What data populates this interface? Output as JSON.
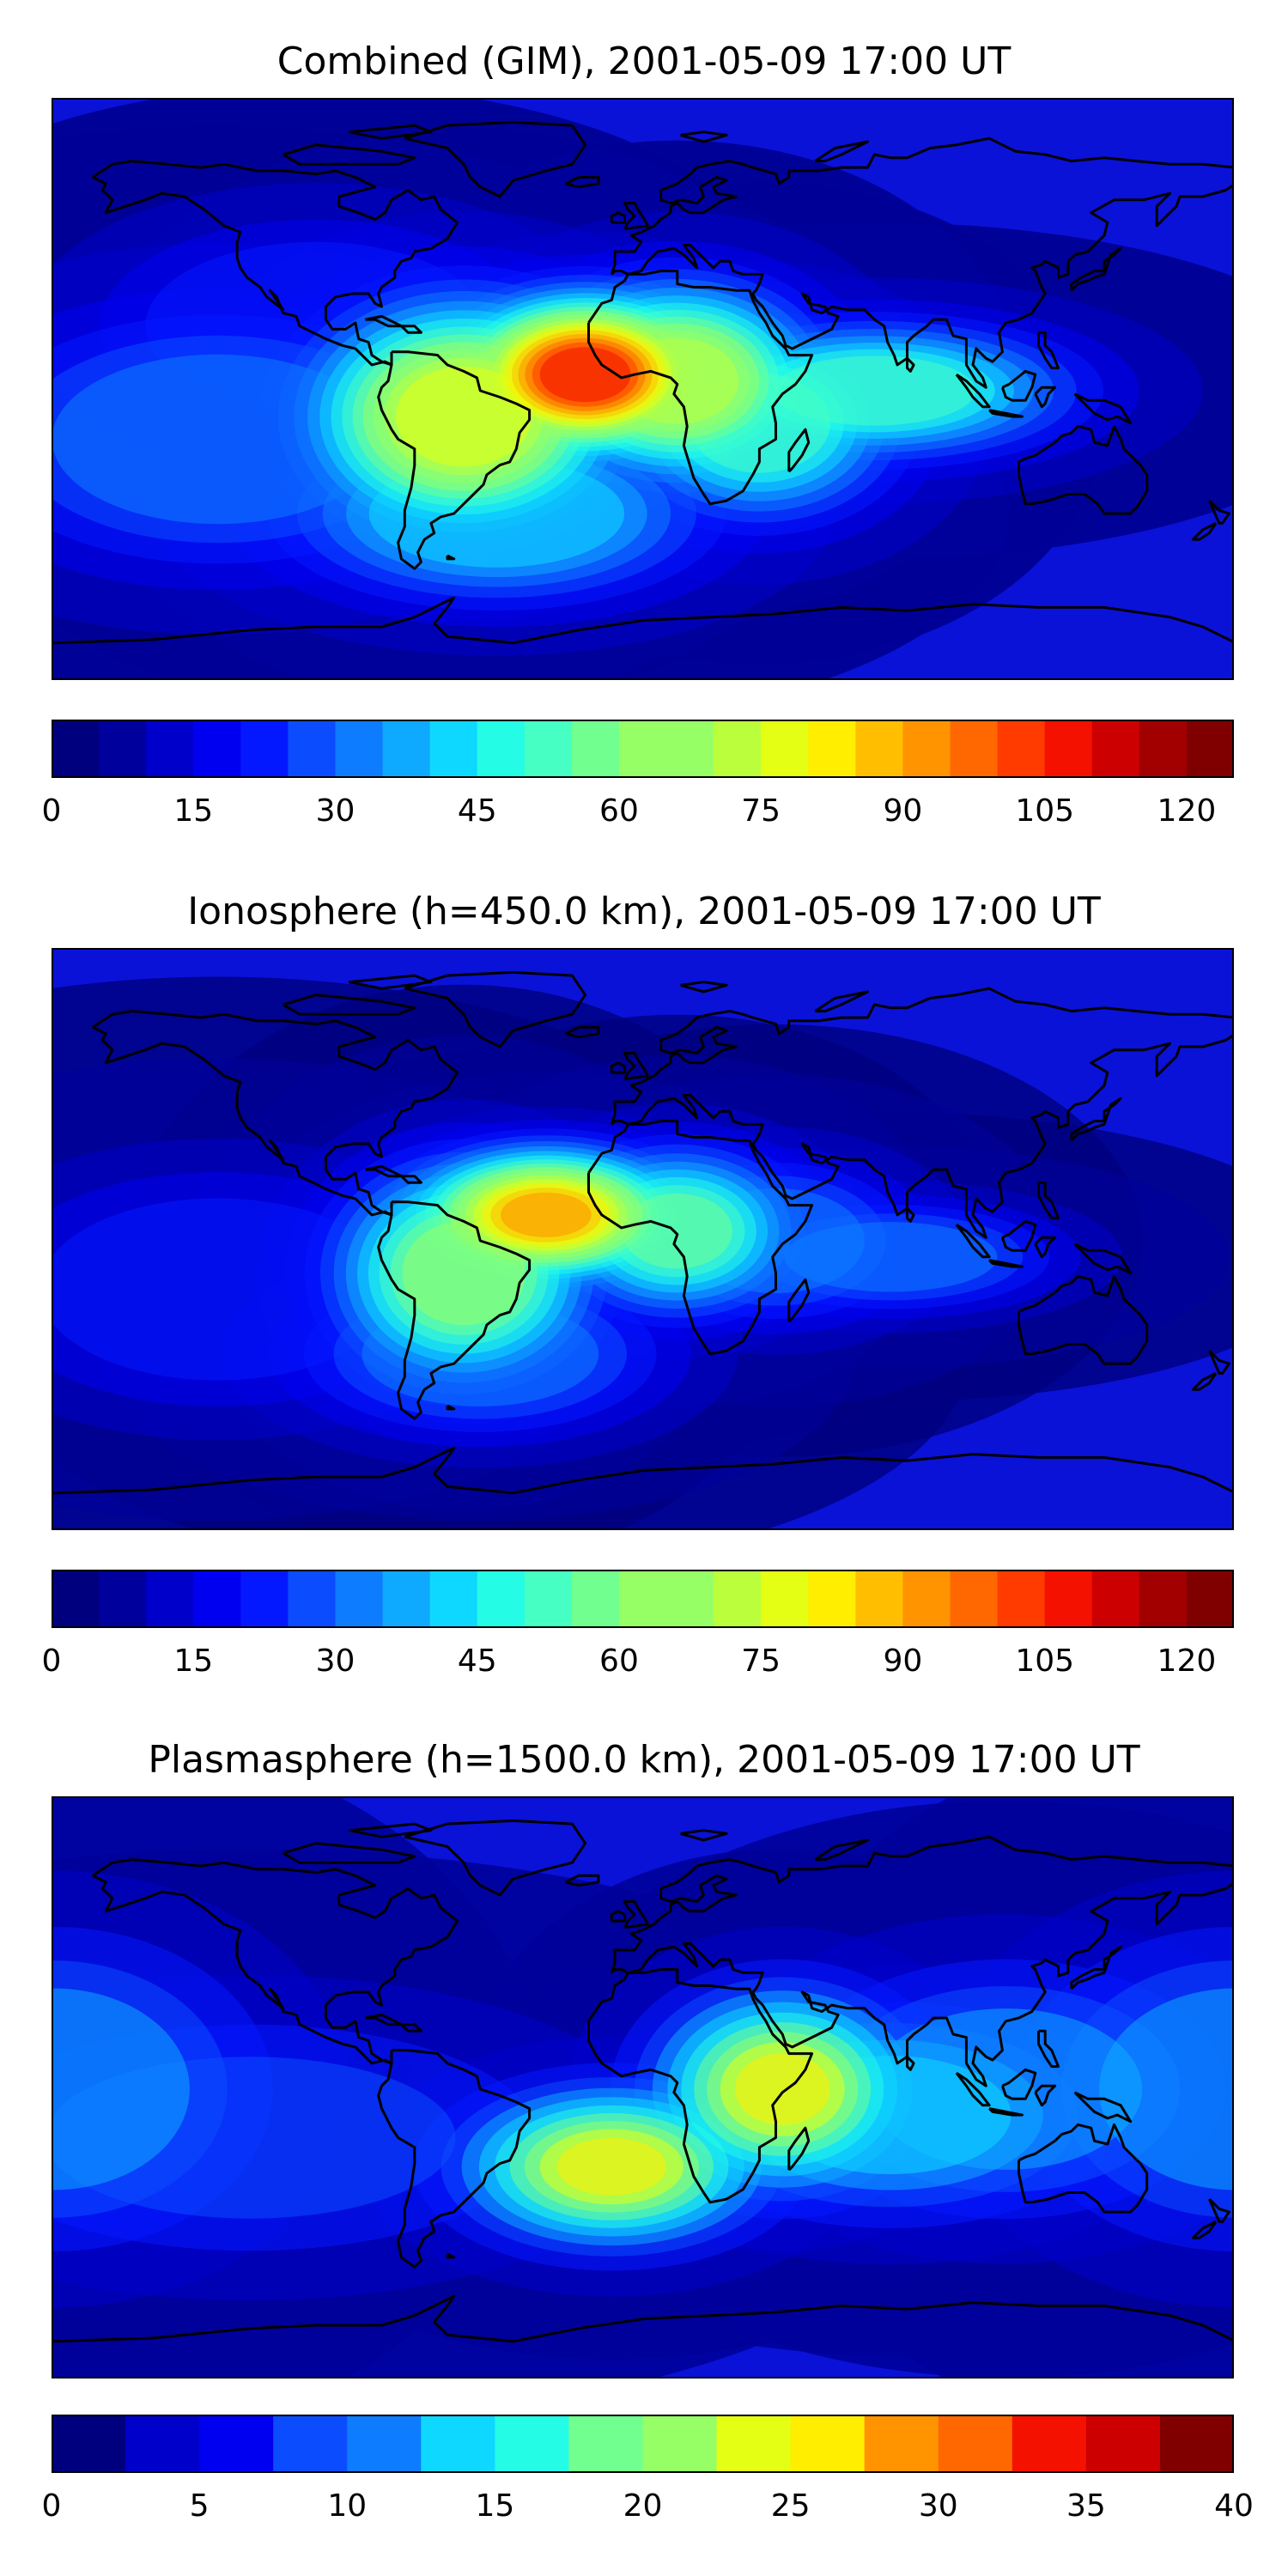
{
  "colors": [
    "#00007f",
    "#00009c",
    "#0000cb",
    "#0000f1",
    "#0418ff",
    "#0b4cff",
    "#0d7cff",
    "#0eaaff",
    "#0ed8ff",
    "#24fce6",
    "#45ffc3",
    "#71ff8f",
    "#96ff66",
    "#bbff3c",
    "#e4ff13",
    "#ffee00",
    "#ffbf00",
    "#ff9400",
    "#ff6800",
    "#ff3b00",
    "#f41100",
    "#cc0000",
    "#a20000",
    "#800000"
  ],
  "panels": [
    {
      "title": "Combined (GIM), 2001-05-09 17:00 UT",
      "chart_data": {
        "type": "heatmap",
        "title": "Combined (GIM), 2001-05-09 17:00 UT",
        "xlabel": "",
        "ylabel": "",
        "colorbar_range": [
          0,
          125
        ],
        "colorbar_levels": 26,
        "colorbar_ticks": [
          0,
          15,
          30,
          45,
          60,
          75,
          90,
          105,
          120
        ],
        "background_level": 20,
        "hotspots": [
          {
            "region": "South America (Amazon)",
            "value": 80
          },
          {
            "region": "Tropical Atlantic near Gulf of Guinea",
            "value": 105
          },
          {
            "region": "East Atlantic / West Africa",
            "value": 95
          },
          {
            "region": "Central Africa",
            "value": 75
          },
          {
            "region": "Equatorial Indian Ocean",
            "value": 55
          },
          {
            "region": "South Atlantic",
            "value": 45
          }
        ]
      }
    },
    {
      "title": "Ionosphere  (h=450.0 km), 2001-05-09 17:00 UT",
      "chart_data": {
        "type": "heatmap",
        "title": "Ionosphere  (h=450.0 km), 2001-05-09 17:00 UT",
        "xlabel": "",
        "ylabel": "",
        "colorbar_range": [
          0,
          125
        ],
        "colorbar_levels": 26,
        "colorbar_ticks": [
          0,
          15,
          30,
          45,
          60,
          75,
          90,
          105,
          120
        ],
        "background_level": 15,
        "hotspots": [
          {
            "region": "Northern South America",
            "value": 85
          },
          {
            "region": "Tropical Atlantic",
            "value": 95
          },
          {
            "region": "South America (south)",
            "value": 65
          },
          {
            "region": "West Africa",
            "value": 60
          },
          {
            "region": "Equatorial Indian Ocean",
            "value": 40
          },
          {
            "region": "South Atlantic",
            "value": 35
          }
        ]
      }
    },
    {
      "title": "Plasmasphere (h=1500.0 km), 2001-05-09 17:00 UT",
      "chart_data": {
        "type": "heatmap",
        "title": "Plasmasphere (h=1500.0 km), 2001-05-09 17:00 UT",
        "xlabel": "",
        "ylabel": "",
        "colorbar_range": [
          0,
          40
        ],
        "colorbar_levels": 17,
        "colorbar_ticks": [
          0,
          5,
          10,
          15,
          20,
          25,
          30,
          35,
          40
        ],
        "background_level": 6,
        "hotspots": [
          {
            "region": "Southern Africa / South Atlantic",
            "value": 26
          },
          {
            "region": "East Africa / Arabian Sea",
            "value": 26
          },
          {
            "region": "Indian Ocean",
            "value": 17
          },
          {
            "region": "Southeast Asia",
            "value": 15
          },
          {
            "region": "Central Pacific (west edge)",
            "value": 14
          },
          {
            "region": "Northern Eurasia",
            "value": 2
          }
        ]
      }
    }
  ]
}
